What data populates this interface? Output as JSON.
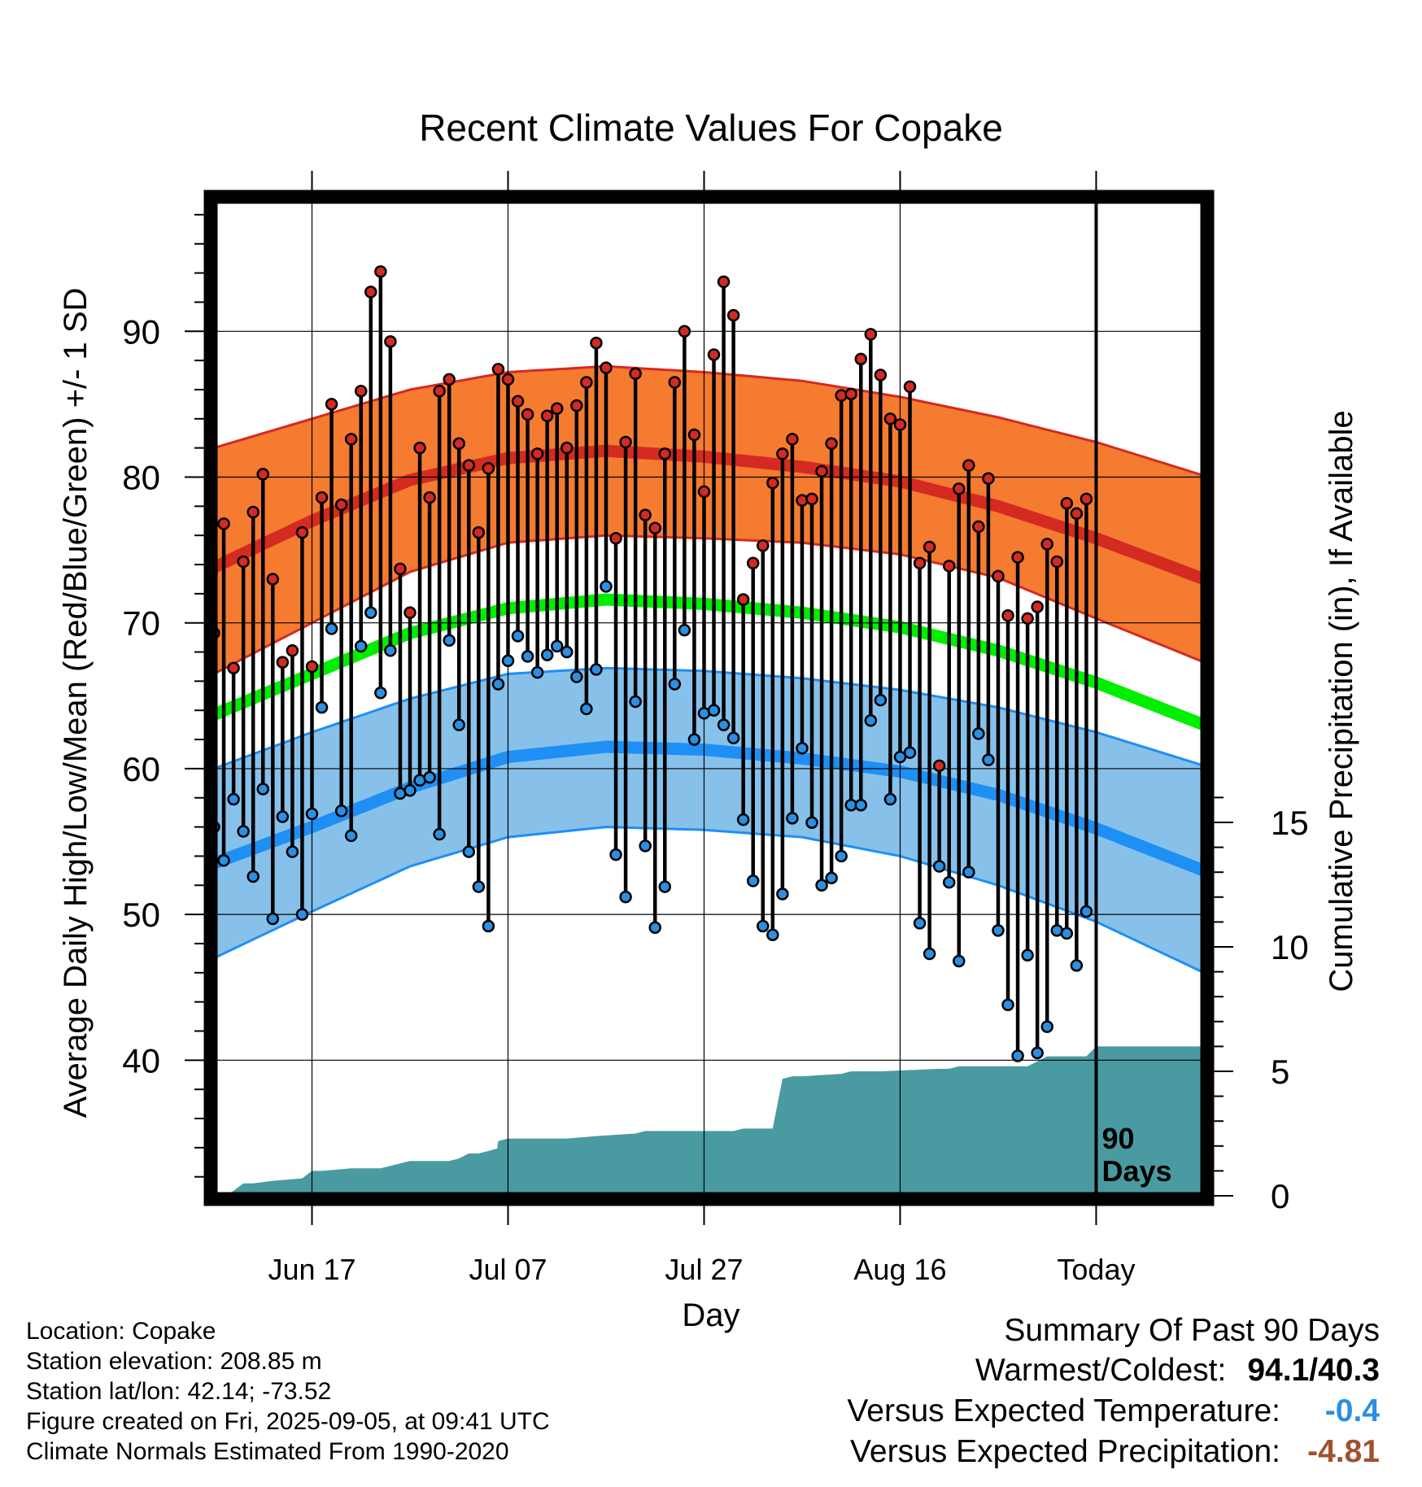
{
  "chart_data": {
    "type": "line",
    "title": "Recent Climate Values For Copake",
    "xlabel": "Day",
    "ylabel": "Average Daily High/Low/Mean (Red/Blue/Green) +/- 1 SD",
    "y2label": "Cumulative Precipitation (in), If Available",
    "xlim": [
      -10,
      91
    ],
    "ylim": [
      30.7,
      99
    ],
    "y2lim": [
      0,
      40
    ],
    "yticks": [
      40,
      50,
      60,
      70,
      80,
      90
    ],
    "y2ticks": [
      0,
      5,
      10,
      15
    ],
    "x_ticks": [
      {
        "day": 0,
        "label": "Jun 17"
      },
      {
        "day": 20,
        "label": "Jul 07"
      },
      {
        "day": 40,
        "label": "Jul 27"
      },
      {
        "day": 60,
        "label": "Aug 16"
      },
      {
        "day": 80,
        "label": "Today"
      }
    ],
    "today_marker": {
      "day": 80,
      "label_line1": "90",
      "label_line2": "Days"
    },
    "grid": true,
    "colors": {
      "high_band": "#f47b30",
      "high_mean": "#d42a22",
      "low_band": "#87c1ea",
      "low_mean": "#1e8ff5",
      "mean": "#00ee00",
      "precip": "#4a9aa2",
      "high_dot": "#d42a22",
      "low_dot": "#2b8fe2"
    },
    "normals_high_mean": {
      "day": [
        -10,
        0,
        10,
        20,
        30,
        40,
        50,
        60,
        70,
        80,
        91
      ],
      "value": [
        73.8,
        77.0,
        79.8,
        81.3,
        81.8,
        81.4,
        80.7,
        79.7,
        78.0,
        75.8,
        73.0
      ]
    },
    "normals_high_upper": {
      "day": [
        -10,
        0,
        10,
        20,
        30,
        40,
        50,
        60,
        70,
        80,
        91
      ],
      "value": [
        82.0,
        84.0,
        86.0,
        87.2,
        87.6,
        87.2,
        86.6,
        85.5,
        84.1,
        82.4,
        80.1
      ]
    },
    "normals_high_lower": {
      "day": [
        -10,
        0,
        10,
        20,
        30,
        40,
        50,
        60,
        70,
        80,
        91
      ],
      "value": [
        66.5,
        70.0,
        73.5,
        75.5,
        76.0,
        75.8,
        75.5,
        74.7,
        73.1,
        70.3,
        67.3
      ]
    },
    "normals_low_mean": {
      "day": [
        -10,
        0,
        10,
        20,
        30,
        40,
        50,
        60,
        70,
        80,
        91
      ],
      "value": [
        53.5,
        56.0,
        58.7,
        60.8,
        61.5,
        61.3,
        60.7,
        59.8,
        58.2,
        55.9,
        53.0
      ]
    },
    "normals_low_upper": {
      "day": [
        -10,
        0,
        10,
        20,
        30,
        40,
        50,
        60,
        70,
        80,
        91
      ],
      "value": [
        60.0,
        62.5,
        64.8,
        66.5,
        66.9,
        66.7,
        66.2,
        65.4,
        64.2,
        62.5,
        60.2
      ]
    },
    "normals_low_lower": {
      "day": [
        -10,
        0,
        10,
        20,
        30,
        40,
        50,
        60,
        70,
        80,
        91
      ],
      "value": [
        47.0,
        50.2,
        53.3,
        55.3,
        56.0,
        55.8,
        55.3,
        54.0,
        52.0,
        49.5,
        46.0
      ]
    },
    "normals_mean": {
      "day": [
        -10,
        0,
        10,
        20,
        30,
        40,
        50,
        60,
        70,
        80,
        91
      ],
      "value": [
        63.7,
        66.5,
        69.3,
        71.0,
        71.6,
        71.3,
        70.7,
        69.7,
        68.1,
        65.9,
        63.0
      ]
    },
    "daily_high": [
      69.3,
      76.8,
      66.9,
      74.2,
      77.6,
      80.2,
      73.0,
      67.3,
      68.1,
      76.2,
      67.0,
      78.6,
      85.0,
      78.1,
      82.6,
      85.9,
      92.7,
      94.1,
      89.3,
      73.7,
      70.7,
      82.0,
      78.6,
      85.9,
      86.7,
      82.3,
      80.8,
      76.2,
      80.6,
      87.4,
      86.7,
      85.2,
      84.3,
      81.6,
      84.2,
      84.7,
      82.0,
      84.9,
      86.5,
      89.2,
      87.5,
      75.8,
      82.4,
      87.1,
      77.4,
      76.5,
      81.6,
      86.5,
      90.0,
      82.9,
      79.0,
      88.4,
      93.4,
      91.1,
      71.6,
      74.1,
      75.3,
      79.6,
      81.6,
      82.6,
      78.4,
      78.5,
      80.4,
      82.3,
      85.6,
      85.7,
      88.1,
      89.8,
      87.0,
      84.0,
      83.6,
      86.2,
      74.1,
      75.2,
      60.2,
      73.9,
      79.2,
      80.8,
      76.6,
      79.9,
      73.2,
      70.5,
      74.5,
      70.3,
      71.1,
      75.4,
      74.2,
      78.2,
      77.5,
      78.5
    ],
    "daily_low": [
      56.0,
      53.7,
      57.9,
      55.7,
      52.6,
      58.6,
      49.7,
      56.7,
      54.3,
      50.0,
      56.9,
      64.2,
      69.6,
      57.1,
      55.4,
      68.4,
      70.7,
      65.2,
      68.1,
      58.3,
      58.5,
      59.2,
      59.4,
      55.5,
      68.8,
      63.0,
      54.3,
      51.9,
      49.2,
      65.8,
      67.4,
      69.1,
      67.7,
      66.6,
      67.8,
      68.4,
      68.0,
      66.3,
      64.1,
      66.8,
      72.5,
      54.1,
      51.2,
      64.6,
      54.7,
      49.1,
      51.9,
      65.8,
      69.5,
      62.0,
      63.8,
      64.0,
      63.0,
      62.1,
      56.5,
      52.3,
      49.2,
      48.6,
      51.4,
      56.6,
      61.4,
      56.3,
      52.0,
      52.5,
      54.0,
      57.5,
      57.5,
      63.3,
      64.7,
      57.9,
      60.8,
      61.1,
      49.4,
      47.3,
      53.3,
      52.2,
      46.8,
      52.9,
      62.4,
      60.6,
      48.9,
      43.8,
      40.3,
      47.2,
      40.5,
      42.3,
      48.9,
      48.7,
      46.5,
      50.2
    ],
    "cumulative_precip": {
      "day": [
        -10,
        -9,
        -8,
        -7,
        -6,
        -4,
        -1,
        0,
        1,
        4,
        7,
        8,
        9,
        10,
        11,
        14,
        15,
        16,
        17,
        18,
        18.9,
        19,
        20,
        26,
        29,
        33,
        34,
        43,
        44,
        47,
        48,
        49,
        50,
        54,
        55,
        57,
        58,
        64,
        65,
        66,
        73,
        75,
        76,
        78,
        79,
        80,
        91
      ],
      "value": [
        0.0,
        0.0,
        0.2,
        0.5,
        0.5,
        0.6,
        0.7,
        1.0,
        1.0,
        1.1,
        1.1,
        1.2,
        1.3,
        1.4,
        1.4,
        1.4,
        1.5,
        1.7,
        1.7,
        1.8,
        1.9,
        2.2,
        2.3,
        2.3,
        2.4,
        2.5,
        2.6,
        2.6,
        2.7,
        2.7,
        4.7,
        4.8,
        4.8,
        4.9,
        5.0,
        5.0,
        5.0,
        5.1,
        5.1,
        5.2,
        5.2,
        5.6,
        5.6,
        5.6,
        5.6,
        6.0,
        6.0
      ]
    }
  },
  "footer": {
    "location": "Location: Copake",
    "elevation": "Station elevation: 208.85 m",
    "latlon": "Station lat/lon: 42.14; -73.52",
    "created": "Figure created on Fri, 2025-09-05, at 09:41 UTC",
    "normals": "Climate Normals Estimated From 1990-2020"
  },
  "summary": {
    "title": "Summary Of Past 90 Days",
    "warm_cold_label": "Warmest/Coldest:",
    "warm_cold_value": "94.1/40.3",
    "temp_label": "Versus Expected Temperature:",
    "temp_value": "-0.4",
    "temp_color": "#2b8fe2",
    "precip_label": "Versus Expected Precipitation:",
    "precip_value": "-4.81",
    "precip_color": "#a0522d"
  }
}
